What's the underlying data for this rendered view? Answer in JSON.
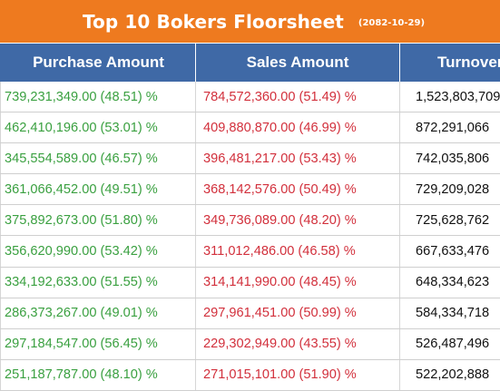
{
  "banner": {
    "title": "Top 10 Bokers Floorsheet",
    "date": "(2082-10-29)",
    "color": "#ee7a1f"
  },
  "table": {
    "header_color": "#3f69a6",
    "purchase_color": "#3aa040",
    "sales_color": "#d2303c",
    "columns": [
      "Purchase Amount",
      "Sales Amount",
      "Turnover"
    ],
    "rows": [
      {
        "purchase": "739,231,349.00 (48.51) %",
        "sales": "784,572,360.00 (51.49) %",
        "turnover": "1,523,803,709"
      },
      {
        "purchase": "462,410,196.00 (53.01) %",
        "sales": "409,880,870.00 (46.99) %",
        "turnover": "872,291,066"
      },
      {
        "purchase": "345,554,589.00 (46.57) %",
        "sales": "396,481,217.00 (53.43) %",
        "turnover": "742,035,806"
      },
      {
        "purchase": "361,066,452.00 (49.51) %",
        "sales": "368,142,576.00 (50.49) %",
        "turnover": "729,209,028"
      },
      {
        "purchase": "375,892,673.00 (51.80) %",
        "sales": "349,736,089.00 (48.20) %",
        "turnover": "725,628,762"
      },
      {
        "purchase": "356,620,990.00 (53.42) %",
        "sales": "311,012,486.00 (46.58) %",
        "turnover": "667,633,476"
      },
      {
        "purchase": "334,192,633.00 (51.55) %",
        "sales": "314,141,990.00 (48.45) %",
        "turnover": "648,334,623"
      },
      {
        "purchase": "286,373,267.00 (49.01) %",
        "sales": "297,961,451.00 (50.99) %",
        "turnover": "584,334,718"
      },
      {
        "purchase": "297,184,547.00 (56.45) %",
        "sales": "229,302,949.00 (43.55) %",
        "turnover": "526,487,496"
      },
      {
        "purchase": "251,187,787.00 (48.10) %",
        "sales": "271,015,101.00 (51.90) %",
        "turnover": "522,202,888"
      }
    ]
  }
}
